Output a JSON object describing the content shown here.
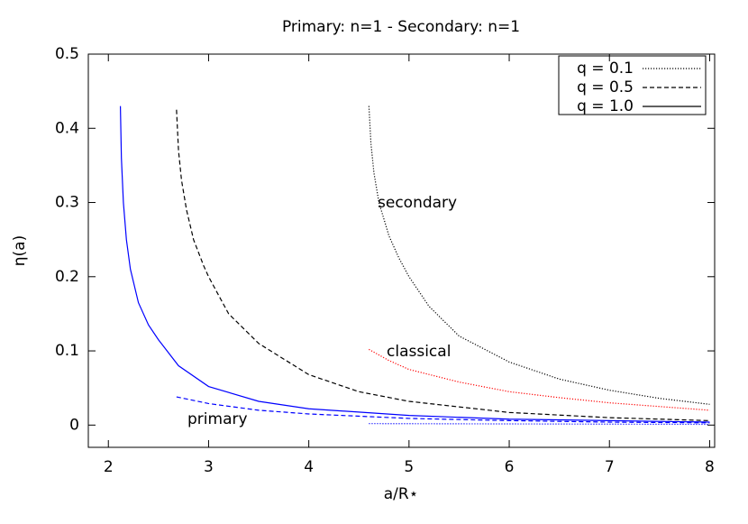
{
  "chart_data": {
    "type": "line",
    "title": "Primary: n=1 - Secondary: n=1",
    "x_label": "a/R⋆",
    "y_label": "η(a)",
    "xlim": [
      1.8,
      8.05
    ],
    "ylim": [
      -0.03,
      0.5
    ],
    "xticks": [
      2,
      3,
      4,
      5,
      6,
      7,
      8
    ],
    "yticks": [
      0,
      0.1,
      0.2,
      0.3,
      0.4,
      0.5
    ],
    "legend": [
      {
        "label": "q = 0.1",
        "dash": "dotted"
      },
      {
        "label": "q = 0.5",
        "dash": "dashed"
      },
      {
        "label": "q = 1.0",
        "dash": "solid"
      }
    ],
    "annotations": [
      {
        "text": "secondary",
        "color": "#000000"
      },
      {
        "text": "classical",
        "color": "#ff0000"
      },
      {
        "text": "primary",
        "color": "#0000ff"
      }
    ],
    "series": [
      {
        "color": "#000000",
        "dash": "dotted",
        "x": [
          4.6,
          4.62,
          4.65,
          4.7,
          4.8,
          4.9,
          5.0,
          5.2,
          5.5,
          6.0,
          6.5,
          7.0,
          7.5,
          8.0
        ],
        "values": [
          0.43,
          0.38,
          0.34,
          0.3,
          0.255,
          0.225,
          0.2,
          0.16,
          0.12,
          0.085,
          0.062,
          0.047,
          0.036,
          0.028
        ]
      },
      {
        "color": "#000000",
        "dash": "dashed",
        "x": [
          2.68,
          2.7,
          2.73,
          2.78,
          2.85,
          2.95,
          3.0,
          3.2,
          3.5,
          4.0,
          4.5,
          5,
          6,
          7,
          8
        ],
        "values": [
          0.425,
          0.37,
          0.33,
          0.29,
          0.25,
          0.215,
          0.2,
          0.15,
          0.11,
          0.068,
          0.045,
          0.032,
          0.017,
          0.01,
          0.006
        ]
      },
      {
        "color": "#0000ff",
        "dash": "solid",
        "x": [
          2.12,
          2.13,
          2.15,
          2.18,
          2.22,
          2.3,
          2.4,
          2.5,
          2.7,
          3,
          3.5,
          4,
          5,
          6,
          7,
          8
        ],
        "values": [
          0.43,
          0.36,
          0.3,
          0.25,
          0.21,
          0.165,
          0.135,
          0.115,
          0.08,
          0.052,
          0.032,
          0.022,
          0.013,
          0.008,
          0.006,
          0.004
        ]
      },
      {
        "color": "#ff0000",
        "dash": "dotted",
        "x": [
          4.6,
          4.8,
          5,
          5.5,
          6,
          6.5,
          7,
          7.5,
          8
        ],
        "values": [
          0.102,
          0.087,
          0.075,
          0.058,
          0.045,
          0.037,
          0.03,
          0.025,
          0.02
        ]
      },
      {
        "color": "#0000ff",
        "dash": "dashed",
        "x": [
          2.68,
          3,
          3.5,
          4,
          5,
          6,
          7,
          8
        ],
        "values": [
          0.038,
          0.029,
          0.02,
          0.015,
          0.009,
          0.006,
          0.004,
          0.003
        ]
      },
      {
        "color": "#0000ff",
        "dash": "dotted",
        "x": [
          4.6,
          8
        ],
        "values": [
          0.002,
          0.001
        ]
      }
    ]
  }
}
